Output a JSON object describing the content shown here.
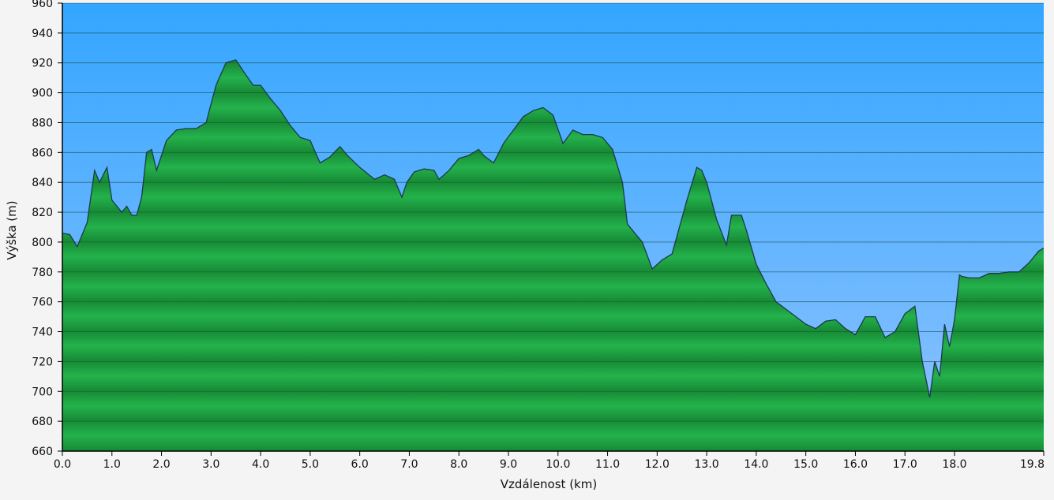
{
  "chart_data": {
    "type": "area",
    "xlabel": "Vzdálenost   (km)",
    "ylabel": "Výška (m)",
    "xlim": [
      0,
      19.8
    ],
    "ylim": [
      660,
      960
    ],
    "x_ticks": [
      0,
      1,
      2,
      3,
      4,
      5,
      6,
      7,
      8,
      9,
      10,
      11,
      12,
      13,
      14,
      15,
      16,
      17,
      18,
      19.8
    ],
    "x_tick_labels": [
      "0.0",
      "1.0",
      "2.0",
      "3.0",
      "4.0",
      "5.0",
      "6.0",
      "7.0",
      "8.0",
      "9.0",
      "10.0",
      "11.0",
      "12.0",
      "13.0",
      "14.0",
      "15.0",
      "16.0",
      "17.0",
      "18.0",
      "19.8"
    ],
    "y_ticks": [
      660,
      680,
      700,
      720,
      740,
      760,
      780,
      800,
      820,
      840,
      860,
      880,
      900,
      920,
      940,
      960
    ],
    "y_tick_labels": [
      "660",
      "680",
      "700",
      "720",
      "740",
      "760",
      "780",
      "800",
      "820",
      "840",
      "860",
      "880",
      "900",
      "920",
      "940",
      "960"
    ],
    "grid": true,
    "colors": {
      "sky_top": "#33a6ff",
      "sky_bottom": "#8fc2ff",
      "fill_light": "#22b04a",
      "fill_dark": "#178a36",
      "outline": "#1b3a4a"
    },
    "series": [
      {
        "x": [
          0,
          0.15,
          0.3,
          0.5,
          0.65,
          0.75,
          0.9,
          1.0,
          1.2,
          1.3,
          1.4,
          1.5,
          1.6,
          1.7,
          1.8,
          1.9,
          2.1,
          2.3,
          2.5,
          2.7,
          2.9,
          3.1,
          3.3,
          3.5,
          3.7,
          3.85,
          4.0,
          4.2,
          4.4,
          4.6,
          4.8,
          5.0,
          5.2,
          5.4,
          5.6,
          5.75,
          6.0,
          6.3,
          6.5,
          6.7,
          6.85,
          6.95,
          7.1,
          7.3,
          7.5,
          7.6,
          7.8,
          8.0,
          8.2,
          8.4,
          8.5,
          8.7,
          8.9,
          9.1,
          9.3,
          9.5,
          9.7,
          9.9,
          10.1,
          10.3,
          10.5,
          10.7,
          10.9,
          11.1,
          11.3,
          11.4,
          11.5,
          11.7,
          11.9,
          12.1,
          12.3,
          12.6,
          12.8,
          12.9,
          13.0,
          13.2,
          13.4,
          13.5,
          13.7,
          13.8,
          14.0,
          14.2,
          14.4,
          14.6,
          14.8,
          15.0,
          15.2,
          15.4,
          15.6,
          15.8,
          16.0,
          16.2,
          16.4,
          16.6,
          16.8,
          17.0,
          17.2,
          17.35,
          17.5,
          17.6,
          17.7,
          17.8,
          17.9,
          18.0,
          18.1,
          18.15,
          18.3,
          18.5,
          18.7,
          18.9,
          19.1,
          19.3,
          19.5,
          19.7,
          19.8
        ],
        "y": [
          806,
          805,
          797,
          813,
          848,
          840,
          850,
          828,
          820,
          824,
          818,
          818,
          830,
          860,
          862,
          848,
          868,
          875,
          876,
          876,
          880,
          905,
          920,
          922,
          912,
          905,
          905,
          896,
          888,
          878,
          870,
          868,
          853,
          857,
          864,
          858,
          850,
          842,
          845,
          842,
          830,
          840,
          847,
          849,
          848,
          842,
          848,
          856,
          858,
          862,
          858,
          853,
          866,
          875,
          884,
          888,
          890,
          885,
          866,
          875,
          872,
          872,
          870,
          862,
          840,
          812,
          808,
          800,
          782,
          788,
          792,
          828,
          850,
          848,
          840,
          815,
          798,
          818,
          818,
          808,
          785,
          772,
          760,
          755,
          750,
          745,
          742,
          747,
          748,
          742,
          738,
          750,
          750,
          736,
          740,
          752,
          757,
          720,
          696,
          720,
          710,
          745,
          730,
          748,
          778,
          777,
          776,
          776,
          779,
          779,
          780,
          780,
          786,
          794,
          796
        ]
      }
    ]
  }
}
